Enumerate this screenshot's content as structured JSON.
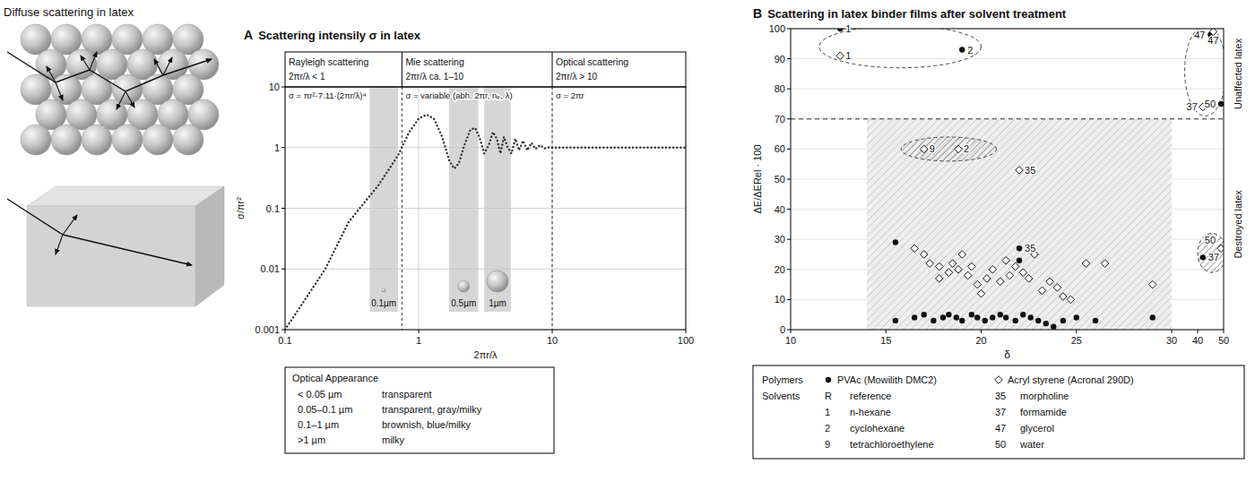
{
  "illustration": {
    "title": "Diffuse scattering in latex"
  },
  "chart_data": [
    {
      "type": "line",
      "panel_label": "A",
      "title": "Scattering intensily σ in latex",
      "x_label": "2πr/λ",
      "y_label": "σ/πr²",
      "log": true,
      "grid": true,
      "xlim": [
        0.1,
        100
      ],
      "ylim": [
        0.001,
        10
      ],
      "xticks": [
        0.1,
        1,
        10,
        100
      ],
      "yticks": [
        0.001,
        0.01,
        0.1,
        1,
        10
      ],
      "line_style": "dotted",
      "color": "#333333",
      "x": [
        0.1,
        0.2,
        0.3,
        0.5,
        0.7,
        0.85,
        1.0,
        1.15,
        1.3,
        1.5,
        1.7,
        1.85,
        2.0,
        2.2,
        2.45,
        2.65,
        2.85,
        3.1,
        3.35,
        3.6,
        3.85,
        4.1,
        4.35,
        4.65,
        4.95,
        5.3,
        5.65,
        6.05,
        6.5,
        7.0,
        7.5,
        8.1,
        8.8,
        9.5,
        10,
        20,
        50,
        100
      ],
      "values": [
        0.001,
        0.01,
        0.06,
        0.24,
        0.74,
        1.8,
        3.0,
        3.5,
        3.0,
        1.5,
        0.6,
        0.45,
        0.55,
        1.1,
        2.0,
        2.1,
        1.5,
        0.8,
        1.1,
        1.8,
        1.4,
        0.8,
        1.5,
        1.0,
        0.8,
        1.4,
        0.9,
        1.3,
        0.9,
        1.2,
        0.95,
        1.1,
        0.97,
        1.02,
        1.0,
        1.0,
        1.0,
        1.0
      ],
      "regimes": [
        {
          "name": "Rayleigh scattering",
          "condition": "2πr/λ < 1",
          "formula": "σ = πr²·7.11·(2πr/λ)⁴",
          "xlim": [
            0.1,
            0.75
          ]
        },
        {
          "name": "Mie scattering",
          "condition": "2πr/λ ca. 1–10",
          "formula": "σ = variable (abh. 2πr, nₚ, λ)",
          "xlim": [
            0.75,
            10
          ]
        },
        {
          "name": "Optical scattering",
          "condition": "2πr/λ > 10",
          "formula": "σ = 2πr",
          "xlim": [
            10,
            100
          ]
        }
      ],
      "particles": [
        {
          "label": "0.1µm",
          "size": 0.1,
          "x": [
            0.43,
            0.7
          ]
        },
        {
          "label": "0.5µm",
          "size": 0.5,
          "x": [
            1.69,
            2.8
          ]
        },
        {
          "label": "1µm",
          "size": 1,
          "x": [
            3.1,
            4.9
          ]
        }
      ],
      "appearance_table": {
        "title": "Optical Appearance",
        "rows": [
          [
            "< 0.05 µm",
            "transparent"
          ],
          [
            "0.05–0.1 µm",
            "transparent, gray/milky"
          ],
          [
            "0.1–1 µm",
            "brownish, blue/milky"
          ],
          [
            ">1 µm",
            "milky"
          ]
        ]
      }
    },
    {
      "type": "scatter",
      "panel_label": "B",
      "title": "Scattering in latex binder films after solvent treatment",
      "x_label": "δ",
      "y_label": "ΔE/ΔERel · 100",
      "grid": true,
      "legend": "bottom",
      "xlim": [
        10,
        50
      ],
      "xbreak": 30,
      "ylim": [
        0,
        100
      ],
      "xticks": [
        10,
        15,
        20,
        25,
        30,
        40,
        50
      ],
      "yticks": [
        0,
        10,
        20,
        30,
        40,
        50,
        60,
        70,
        80,
        90,
        100
      ],
      "reference_line": 70,
      "side_labels": [
        {
          "text": "Unaffected latex",
          "y_range": [
            70,
            100
          ]
        },
        {
          "text": "Destroyed latex",
          "y_range": [
            0,
            70
          ]
        }
      ],
      "regions": [
        {
          "type": "hatched-area",
          "x": [
            14,
            30
          ],
          "y": [
            0,
            70
          ]
        },
        {
          "type": "dashed-ellipse",
          "x": [
            11.5,
            20
          ],
          "y": [
            87,
            101
          ]
        },
        {
          "type": "dashed-ellipse",
          "x": [
            35,
            51
          ],
          "y": [
            71,
            101
          ]
        },
        {
          "type": "hatched-ellipse",
          "x": [
            15.8,
            20.8
          ],
          "y": [
            56,
            64
          ]
        },
        {
          "type": "hatched-ellipse",
          "x": [
            40,
            51
          ],
          "y": [
            19,
            32
          ]
        }
      ],
      "legend_title": "Polymers",
      "series": [
        {
          "name": "PVAc (Mowilith DMC2)",
          "color": "#111111",
          "marker": "circle",
          "x": [
            12.6,
            19,
            22,
            45,
            49,
            42,
            15.5,
            22,
            15.5,
            16.5,
            17,
            17.5,
            18,
            18.3,
            18.7,
            19,
            19.5,
            19.8,
            20.2,
            20.6,
            21,
            21.3,
            21.8,
            22.2,
            22.6,
            23,
            23.4,
            23.8,
            24.3,
            25,
            26,
            29
          ],
          "values": [
            100,
            93,
            27,
            98,
            75,
            24,
            29,
            23,
            3,
            4,
            5,
            3,
            4,
            5,
            4,
            3,
            5,
            4,
            3,
            4,
            5,
            4,
            3,
            5,
            4,
            3,
            2,
            1,
            3,
            4,
            3,
            4
          ],
          "labels": [
            "1",
            "2",
            "35",
            "47",
            "50",
            "37",
            null,
            null,
            null,
            null,
            null,
            null,
            null,
            null,
            null,
            null,
            null,
            null,
            null,
            null,
            null,
            null,
            null,
            null,
            null,
            null,
            null,
            null,
            null,
            null,
            null,
            null
          ]
        },
        {
          "name": "Acryl styrene (Acronal 290D)",
          "color": "#111111",
          "marker": "open-diamond",
          "x": [
            12.6,
            17,
            18.8,
            22,
            46,
            42,
            49,
            16.5,
            17,
            17.3,
            17.8,
            18.3,
            18.5,
            18.8,
            19,
            19.3,
            19.5,
            19.8,
            20,
            20.3,
            20.6,
            21,
            21.3,
            21.8,
            22.2,
            22.5,
            22.8,
            23.2,
            23.6,
            24,
            24.3,
            24.7,
            25.5,
            26.5,
            29,
            17.8,
            21.5
          ],
          "values": [
            91,
            60,
            60,
            53,
            99,
            74,
            27,
            27,
            25,
            22,
            21,
            19,
            22,
            20,
            25,
            18,
            21,
            15,
            12,
            17,
            20,
            16,
            23,
            21,
            19,
            17,
            25,
            13,
            16,
            14,
            11,
            10,
            22,
            22,
            15,
            17,
            18
          ],
          "labels": [
            "1",
            "9",
            "2",
            "35",
            "47",
            "37",
            "50",
            null,
            null,
            null,
            null,
            null,
            null,
            null,
            null,
            null,
            null,
            null,
            null,
            null,
            null,
            null,
            null,
            null,
            null,
            null,
            null,
            null,
            null,
            null,
            null,
            null,
            null,
            null,
            null,
            null,
            null
          ]
        }
      ],
      "solvents": {
        "title": "Solvents",
        "items": [
          {
            "code": "R",
            "name": "reference"
          },
          {
            "code": "1",
            "name": "n-hexane"
          },
          {
            "code": "2",
            "name": "cyclohexane"
          },
          {
            "code": "9",
            "name": "tetrachloroethylene"
          },
          {
            "code": "35",
            "name": "morpholine"
          },
          {
            "code": "37",
            "name": "formamide"
          },
          {
            "code": "47",
            "name": "glycerol"
          },
          {
            "code": "50",
            "name": "water"
          }
        ]
      }
    }
  ]
}
